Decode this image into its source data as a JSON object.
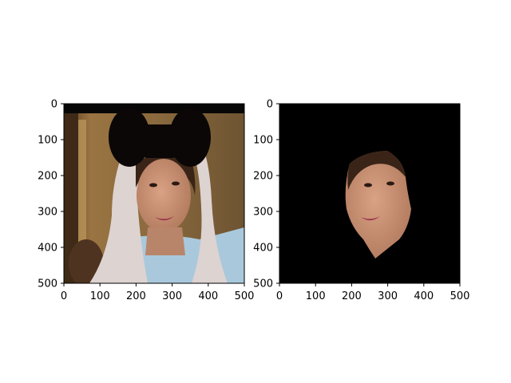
{
  "figure": {
    "background": "#ffffff",
    "panels": 2
  },
  "chart_data": [
    {
      "type": "image",
      "image_description_colors": {
        "background_room": "#8a6a3e",
        "scarf": "#ddd3d1",
        "blouse": "#a9c8dc",
        "skin": "#c99173",
        "hair": "#3a2417",
        "bow": "#0b0706",
        "top_bar": "#070707",
        "lips": "#9c3a4f"
      },
      "xlim": [
        0,
        500
      ],
      "ylim": [
        500,
        0
      ],
      "x_ticks": [
        0,
        100,
        200,
        300,
        400,
        500
      ],
      "y_ticks": [
        0,
        100,
        200,
        300,
        400,
        500
      ],
      "x_tick_labels": [
        "0",
        "100",
        "200",
        "300",
        "400",
        "500"
      ],
      "y_tick_labels": [
        "0",
        "100",
        "200",
        "300",
        "400",
        "500"
      ],
      "title": "",
      "xlabel": "",
      "ylabel": ""
    },
    {
      "type": "image",
      "image_description_colors": {
        "background": "#000000",
        "skin": "#c99173",
        "hair": "#3a2417",
        "lips": "#9c3a4f"
      },
      "xlim": [
        0,
        500
      ],
      "ylim": [
        500,
        0
      ],
      "x_ticks": [
        0,
        100,
        200,
        300,
        400,
        500
      ],
      "y_ticks": [
        0,
        100,
        200,
        300,
        400,
        500
      ],
      "x_tick_labels": [
        "0",
        "100",
        "200",
        "300",
        "400",
        "500"
      ],
      "y_tick_labels": [
        "0",
        "100",
        "200",
        "300",
        "400",
        "500"
      ],
      "title": "",
      "xlabel": "",
      "ylabel": ""
    }
  ]
}
